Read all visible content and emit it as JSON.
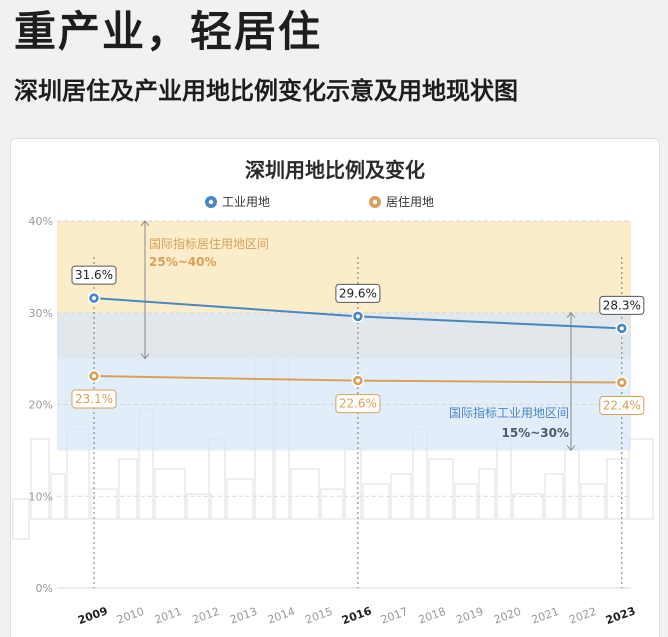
{
  "header": {
    "title": "重产业，轻居住",
    "subtitle": "深圳居住及产业用地比例变化示意及用地现状图"
  },
  "chart_data": {
    "type": "line",
    "title": "深圳用地比例及变化",
    "x": [
      "2009",
      "2010",
      "2011",
      "2012",
      "2013",
      "2014",
      "2015",
      "2016",
      "2017",
      "2018",
      "2019",
      "2020",
      "2021",
      "2022",
      "2023"
    ],
    "emphasized_x": [
      "2009",
      "2016",
      "2023"
    ],
    "ylim": [
      0,
      40
    ],
    "yticks": [
      "0%",
      "10%",
      "20%",
      "30%",
      "40%"
    ],
    "grid": true,
    "legend_position": "top",
    "series": [
      {
        "name": "工业用地",
        "color": "#4a86c0",
        "icon": "factory-icon",
        "points": [
          {
            "x": "2009",
            "y": 31.6,
            "label": "31.6%"
          },
          {
            "x": "2016",
            "y": 29.6,
            "label": "29.6%"
          },
          {
            "x": "2023",
            "y": 28.3,
            "label": "28.3%"
          }
        ]
      },
      {
        "name": "居住用地",
        "color": "#d9a05b",
        "icon": "house-icon",
        "points": [
          {
            "x": "2009",
            "y": 23.1,
            "label": "23.1%"
          },
          {
            "x": "2016",
            "y": 22.6,
            "label": "22.6%"
          },
          {
            "x": "2023",
            "y": 22.4,
            "label": "22.4%"
          }
        ]
      }
    ],
    "bands": [
      {
        "title": "国际指标居住用地区间",
        "range_label": "25%~40%",
        "from": 25,
        "to": 40,
        "color": "#f9e6b8",
        "text_color": "#d9a05b"
      },
      {
        "title": "国际指标工业用地区间",
        "range_label": "15%~30%",
        "from": 15,
        "to": 30,
        "color": "#d6e6f8",
        "text_color": "#4a86c0"
      }
    ],
    "colors": {
      "axis_text": "#9a9a9a",
      "emphasized_text": "#222222",
      "grid": "#d8d8d8",
      "label_text": "#555555",
      "skyline": "#dfdfdf"
    }
  }
}
